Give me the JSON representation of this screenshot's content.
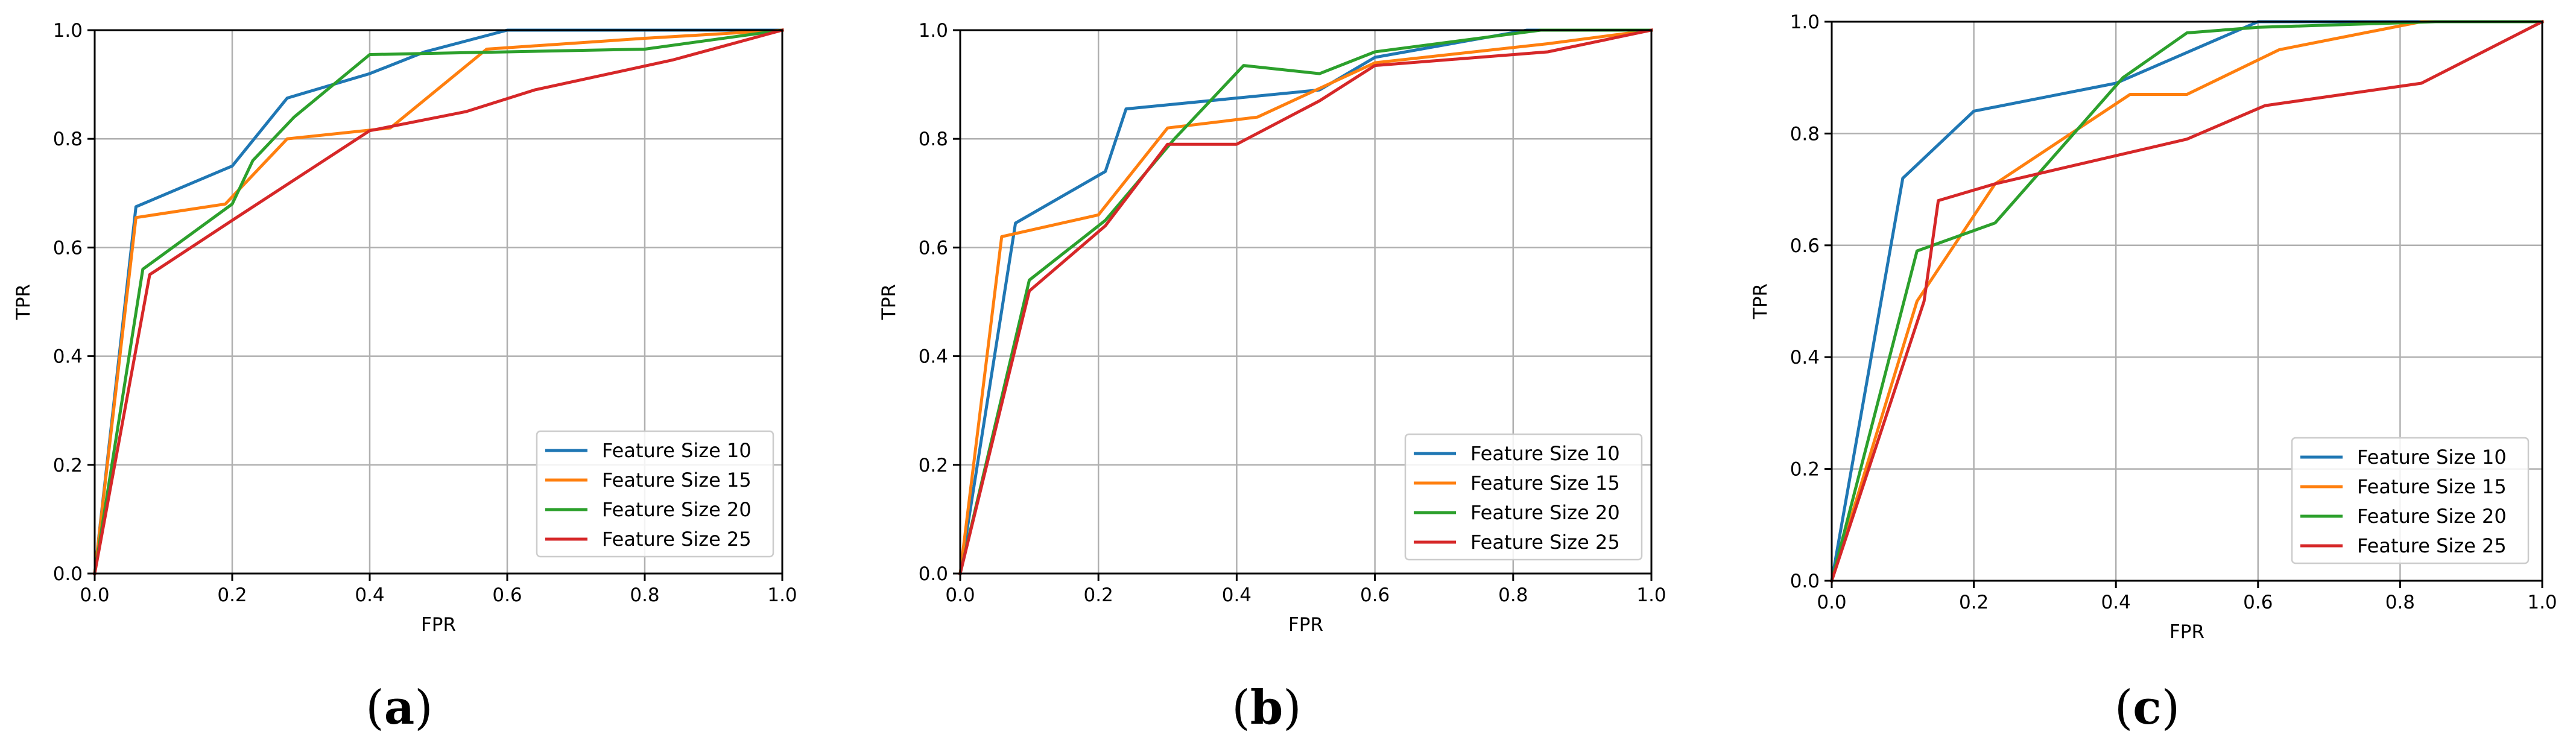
{
  "chart_data": [
    {
      "type": "line",
      "panel_label": "a",
      "xlabel": "FPR",
      "ylabel": "TPR",
      "xlim": [
        0.0,
        1.0
      ],
      "ylim": [
        0.0,
        1.0
      ],
      "xticks": [
        "0.0",
        "0.2",
        "0.4",
        "0.6",
        "0.8",
        "1.0"
      ],
      "yticks": [
        "0.0",
        "0.2",
        "0.4",
        "0.6",
        "0.8",
        "1.0"
      ],
      "grid": true,
      "legend_position": "lower-right",
      "series": [
        {
          "name": "Feature Size 10",
          "color": "#1f77b4",
          "x": [
            0.0,
            0.06,
            0.2,
            0.28,
            0.4,
            0.48,
            0.54,
            0.6,
            1.0
          ],
          "y": [
            0.0,
            0.675,
            0.75,
            0.875,
            0.92,
            0.96,
            0.98,
            1.0,
            1.0
          ]
        },
        {
          "name": "Feature Size 15",
          "color": "#ff7f0e",
          "x": [
            0.0,
            0.06,
            0.19,
            0.28,
            0.43,
            0.57,
            0.8,
            1.0
          ],
          "y": [
            0.0,
            0.655,
            0.68,
            0.8,
            0.82,
            0.965,
            0.985,
            1.0
          ],
          "y_note": "approx"
        },
        {
          "name": "Feature Size 20",
          "color": "#2ca02c",
          "x": [
            0.0,
            0.07,
            0.2,
            0.23,
            0.29,
            0.4,
            0.6,
            0.8,
            1.0
          ],
          "y": [
            0.0,
            0.56,
            0.68,
            0.76,
            0.84,
            0.955,
            0.96,
            0.965,
            1.0
          ]
        },
        {
          "name": "Feature Size 25",
          "color": "#d62728",
          "x": [
            0.0,
            0.08,
            0.2,
            0.4,
            0.54,
            0.64,
            0.84,
            1.0
          ],
          "y": [
            0.0,
            0.55,
            0.65,
            0.815,
            0.85,
            0.89,
            0.945,
            1.0
          ]
        }
      ]
    },
    {
      "type": "line",
      "panel_label": "b",
      "xlabel": "FPR",
      "ylabel": "TPR",
      "xlim": [
        0.0,
        1.0
      ],
      "ylim": [
        0.0,
        1.0
      ],
      "xticks": [
        "0.0",
        "0.2",
        "0.4",
        "0.6",
        "0.8",
        "1.0"
      ],
      "yticks": [
        "0.0",
        "0.2",
        "0.4",
        "0.6",
        "0.8",
        "1.0"
      ],
      "grid": true,
      "legend_position": "lower-right",
      "series": [
        {
          "name": "Feature Size 10",
          "color": "#1f77b4",
          "x": [
            0.0,
            0.08,
            0.21,
            0.24,
            0.52,
            0.6,
            0.82,
            1.0
          ],
          "y": [
            0.0,
            0.645,
            0.74,
            0.855,
            0.89,
            0.95,
            1.0,
            1.0
          ]
        },
        {
          "name": "Feature Size 15",
          "color": "#ff7f0e",
          "x": [
            0.0,
            0.06,
            0.2,
            0.3,
            0.43,
            0.6,
            0.85,
            1.0
          ],
          "y": [
            0.0,
            0.62,
            0.66,
            0.82,
            0.84,
            0.94,
            0.975,
            1.0
          ]
        },
        {
          "name": "Feature Size 20",
          "color": "#2ca02c",
          "x": [
            0.0,
            0.1,
            0.21,
            0.31,
            0.41,
            0.52,
            0.6,
            0.84,
            1.0
          ],
          "y": [
            0.0,
            0.54,
            0.65,
            0.8,
            0.935,
            0.92,
            0.96,
            1.0,
            1.0
          ]
        },
        {
          "name": "Feature Size 25",
          "color": "#d62728",
          "x": [
            0.0,
            0.1,
            0.21,
            0.3,
            0.4,
            0.52,
            0.6,
            0.85,
            1.0
          ],
          "y": [
            0.0,
            0.52,
            0.64,
            0.79,
            0.79,
            0.87,
            0.935,
            0.96,
            1.0
          ]
        }
      ]
    },
    {
      "type": "line",
      "panel_label": "c",
      "xlabel": "FPR",
      "ylabel": "TPR",
      "xlim": [
        0.0,
        1.0
      ],
      "ylim": [
        0.0,
        1.0
      ],
      "xticks": [
        "0.0",
        "0.2",
        "0.4",
        "0.6",
        "0.8",
        "1.0"
      ],
      "yticks": [
        "0.0",
        "0.2",
        "0.4",
        "0.6",
        "0.8",
        "1.0"
      ],
      "grid": true,
      "legend_position": "lower-right",
      "series": [
        {
          "name": "Feature Size 10",
          "color": "#1f77b4",
          "x": [
            0.0,
            0.1,
            0.2,
            0.4,
            0.6,
            1.0
          ],
          "y": [
            0.0,
            0.72,
            0.84,
            0.89,
            1.0,
            1.0
          ]
        },
        {
          "name": "Feature Size 15",
          "color": "#ff7f0e",
          "x": [
            0.0,
            0.12,
            0.23,
            0.42,
            0.5,
            0.63,
            0.83,
            1.0
          ],
          "y": [
            0.0,
            0.5,
            0.71,
            0.87,
            0.87,
            0.95,
            1.0,
            1.0
          ]
        },
        {
          "name": "Feature Size 20",
          "color": "#2ca02c",
          "x": [
            0.0,
            0.12,
            0.23,
            0.41,
            0.5,
            0.6,
            0.85,
            1.0
          ],
          "y": [
            0.0,
            0.59,
            0.64,
            0.9,
            0.98,
            0.99,
            1.0,
            1.0
          ]
        },
        {
          "name": "Feature Size 25",
          "color": "#d62728",
          "x": [
            0.0,
            0.13,
            0.15,
            0.23,
            0.5,
            0.61,
            0.83,
            1.0
          ],
          "y": [
            0.0,
            0.5,
            0.68,
            0.71,
            0.79,
            0.85,
            0.89,
            1.0
          ]
        }
      ]
    }
  ]
}
